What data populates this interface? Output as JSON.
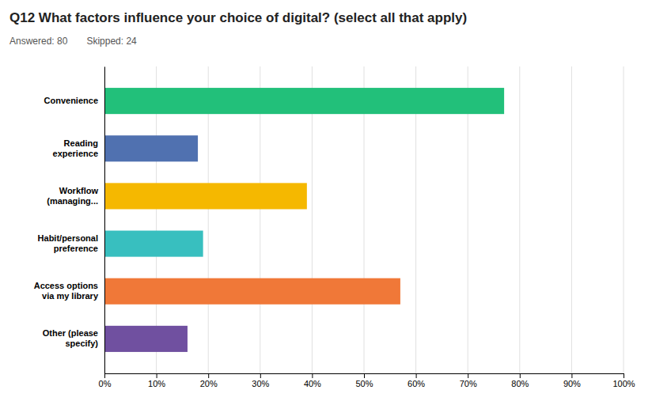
{
  "chart_data": {
    "type": "bar",
    "orientation": "horizontal",
    "title": "Q12 What factors influence your choice of digital? (select all that apply)",
    "subtitle": [
      "Answered: 80",
      "Skipped: 24"
    ],
    "categories": [
      "Convenience",
      "Reading\nexperience",
      "Workflow\n(managing...",
      "Habit/personal\npreference",
      "Access options\nvia my library",
      "Other (please\nspecify)"
    ],
    "values": [
      0.77,
      0.18,
      0.39,
      0.19,
      0.57,
      0.16
    ],
    "colors": [
      "#22c07a",
      "#5071b0",
      "#f5b800",
      "#38bfbf",
      "#f07838",
      "#7050a0"
    ],
    "xlim": [
      0,
      1.0
    ],
    "xticks": [
      {
        "value": 0,
        "label": "0%"
      },
      {
        "value": 0.1,
        "label": "10%"
      },
      {
        "value": 0.2,
        "label": "20%"
      },
      {
        "value": 0.3,
        "label": "30%"
      },
      {
        "value": 0.4,
        "label": "40%"
      },
      {
        "value": 0.5,
        "label": "50%"
      },
      {
        "value": 0.6,
        "label": "60%"
      },
      {
        "value": 0.7,
        "label": "70%"
      },
      {
        "value": 0.8,
        "label": "80%"
      },
      {
        "value": 0.9,
        "label": "90%"
      },
      {
        "value": 1.0,
        "label": "100%"
      }
    ],
    "grid": true
  }
}
